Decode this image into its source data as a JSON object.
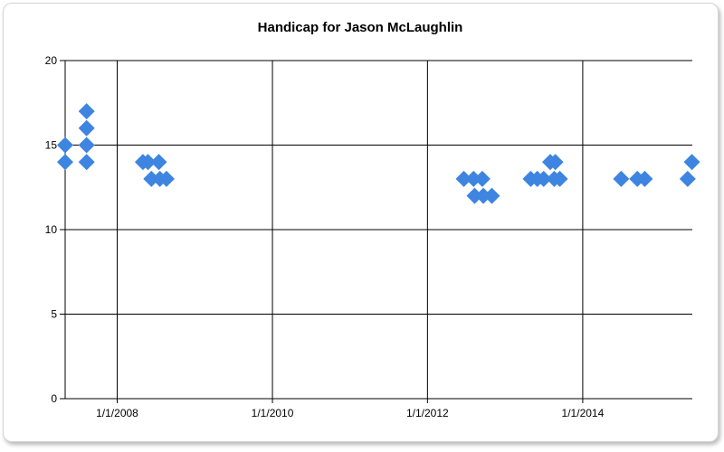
{
  "chart_data": {
    "type": "scatter",
    "title": "Handicap for Jason McLaughlin",
    "xlabel": "",
    "ylabel": "",
    "ylim": [
      0,
      20
    ],
    "xlim": [
      "2007-05-01",
      "2015-06-01"
    ],
    "x_ticks": [
      "1/1/2008",
      "1/1/2010",
      "1/1/2012",
      "1/1/2014"
    ],
    "x_tick_dates": [
      "2008-01-01",
      "2010-01-01",
      "2012-01-01",
      "2014-01-01"
    ],
    "y_ticks": [
      "0",
      "5",
      "10",
      "15",
      "20"
    ],
    "grid": true,
    "marker": "diamond",
    "color": "#3d85e0",
    "series": [
      {
        "points": [
          {
            "x": "2007-05-01",
            "y": 15
          },
          {
            "x": "2007-05-01",
            "y": 14
          },
          {
            "x": "2007-08-10",
            "y": 17
          },
          {
            "x": "2007-08-10",
            "y": 16
          },
          {
            "x": "2007-08-10",
            "y": 15
          },
          {
            "x": "2007-08-10",
            "y": 14
          },
          {
            "x": "2008-05-01",
            "y": 14
          },
          {
            "x": "2008-05-25",
            "y": 14
          },
          {
            "x": "2008-06-10",
            "y": 13
          },
          {
            "x": "2008-07-15",
            "y": 14
          },
          {
            "x": "2008-07-20",
            "y": 13
          },
          {
            "x": "2008-08-20",
            "y": 13
          },
          {
            "x": "2012-06-20",
            "y": 13
          },
          {
            "x": "2012-08-05",
            "y": 13
          },
          {
            "x": "2012-08-10",
            "y": 12
          },
          {
            "x": "2012-09-15",
            "y": 13
          },
          {
            "x": "2012-09-20",
            "y": 12
          },
          {
            "x": "2012-10-30",
            "y": 12
          },
          {
            "x": "2013-05-01",
            "y": 13
          },
          {
            "x": "2013-06-01",
            "y": 13
          },
          {
            "x": "2013-07-01",
            "y": 13
          },
          {
            "x": "2013-08-01",
            "y": 14
          },
          {
            "x": "2013-08-20",
            "y": 13
          },
          {
            "x": "2013-08-25",
            "y": 14
          },
          {
            "x": "2013-09-15",
            "y": 13
          },
          {
            "x": "2014-07-01",
            "y": 13
          },
          {
            "x": "2014-09-15",
            "y": 13
          },
          {
            "x": "2014-10-20",
            "y": 13
          },
          {
            "x": "2015-05-10",
            "y": 13
          },
          {
            "x": "2015-05-30",
            "y": 14
          }
        ]
      }
    ]
  }
}
